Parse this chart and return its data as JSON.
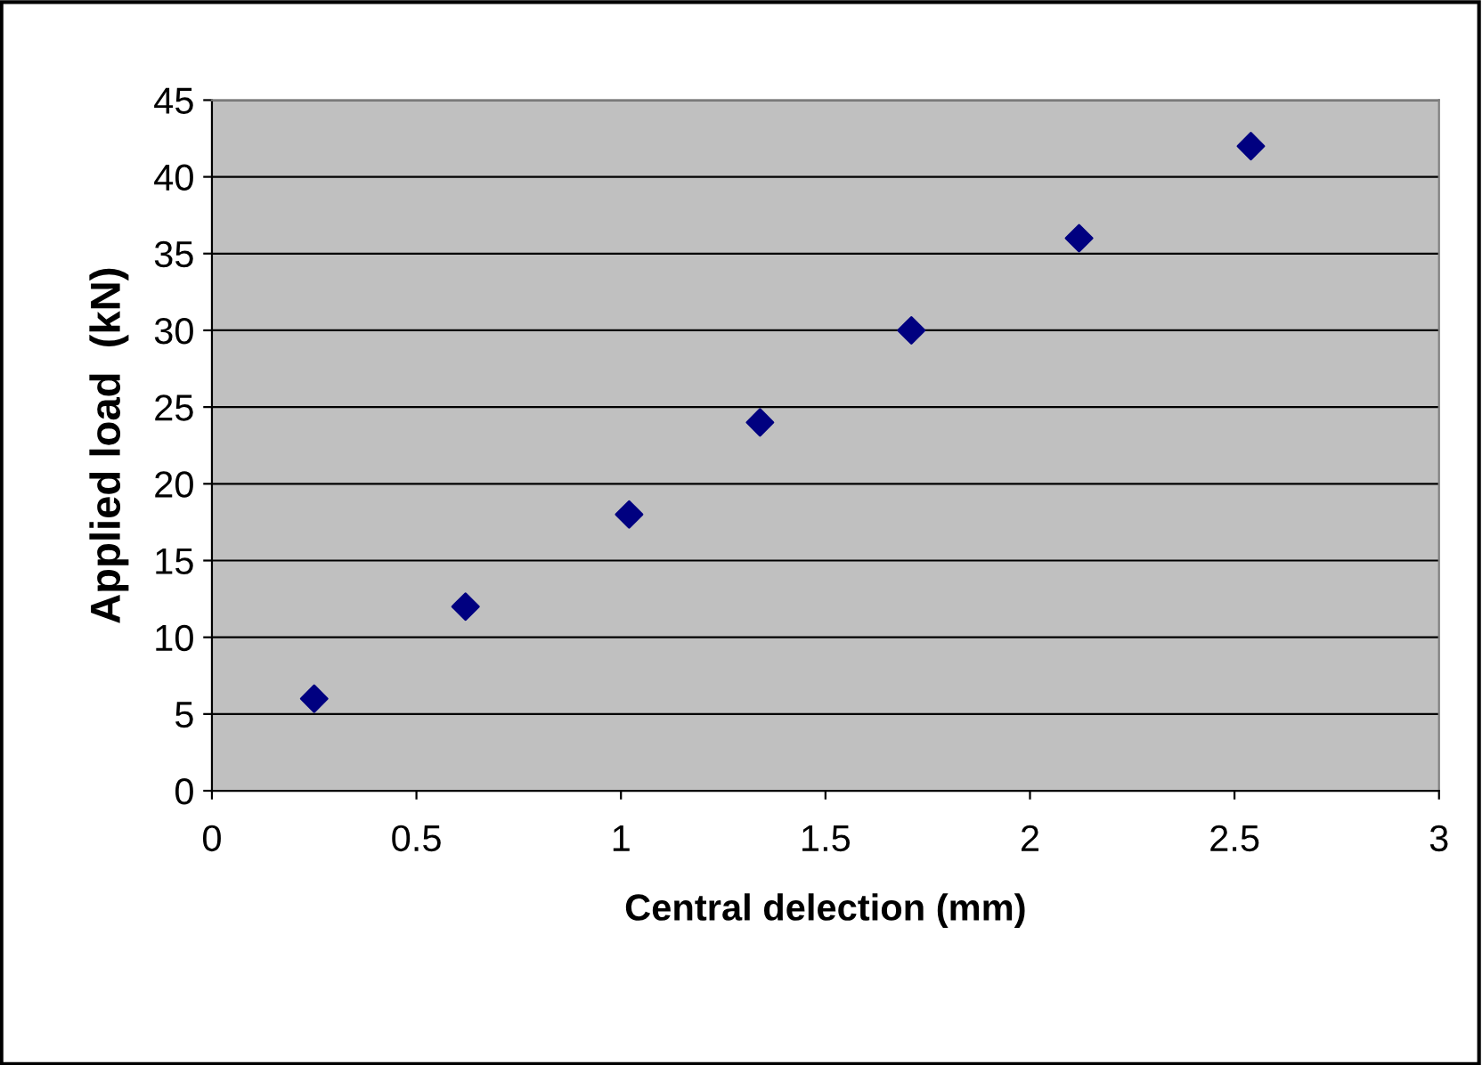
{
  "chart_data": {
    "type": "scatter",
    "xlabel": "Central delection (mm)",
    "ylabel": "Applied load  (kN)",
    "x": [
      0.25,
      0.62,
      1.02,
      1.34,
      1.71,
      2.12,
      2.54
    ],
    "series": [
      {
        "color": "#000080",
        "values": [
          6,
          12,
          18,
          24,
          30,
          36,
          42
        ]
      }
    ],
    "xlim": [
      0,
      3
    ],
    "xticks": [
      0,
      0.5,
      1,
      1.5,
      2,
      2.5,
      3
    ],
    "ylim": [
      0,
      45
    ],
    "yticks": [
      0,
      5,
      10,
      15,
      20,
      25,
      30,
      35,
      40,
      45
    ],
    "grid": "y",
    "marker": "diamond",
    "legend": false
  }
}
